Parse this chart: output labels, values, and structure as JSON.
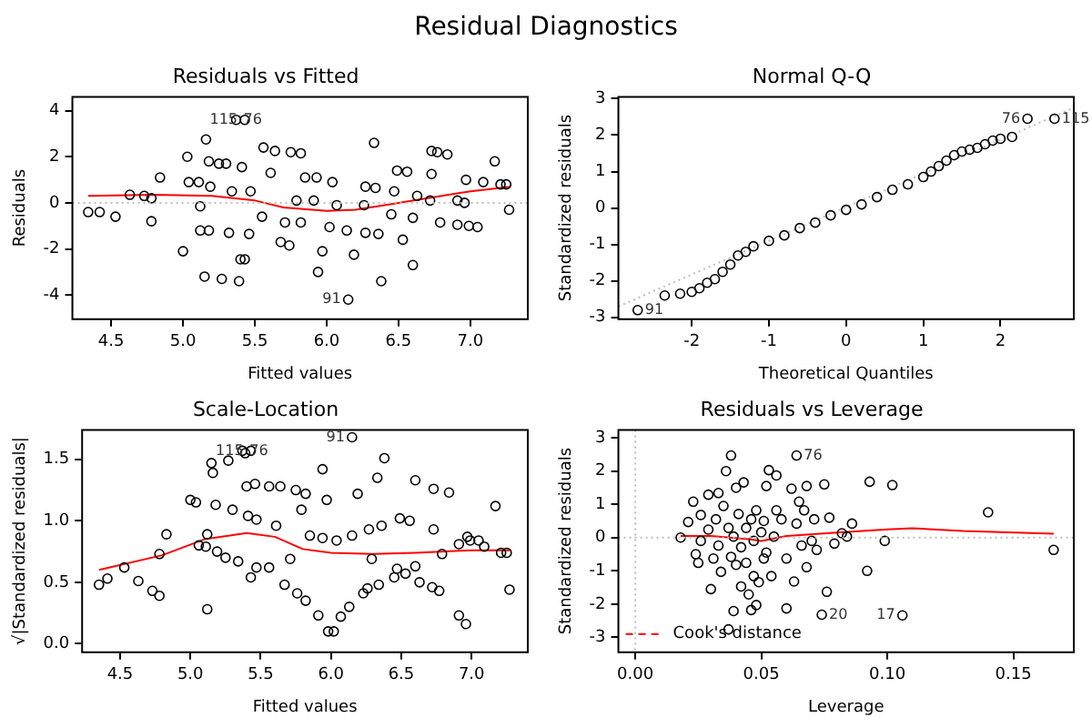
{
  "chart_data": [
    {
      "type": "other",
      "title": "Residual Diagnostics"
    },
    {
      "type": "scatter",
      "title": "Residuals vs Fitted",
      "xlabel": "Fitted values",
      "ylabel": "Residuals",
      "marker": "circle",
      "xlim": [
        4.23,
        7.4
      ],
      "ylim": [
        -5.05,
        4.6
      ],
      "xticks": [
        4.5,
        {
          "value": 5,
          "label": "5.0"
        },
        5.5,
        {
          "value": 6,
          "label": "6.0"
        },
        6.5,
        {
          "value": 7,
          "label": "7.0"
        }
      ],
      "yticks": [
        -4,
        -2,
        0,
        2,
        4
      ],
      "ref_lines": [
        {
          "axis": "y",
          "value": 0,
          "color": "#bebebe",
          "line_style": "dotted"
        }
      ],
      "annotations": [
        {
          "text": "76",
          "x": 5.37,
          "y": 3.6
        },
        {
          "text": "115",
          "x": 5.43,
          "y": 3.6
        },
        {
          "text": "91",
          "x": 6.15,
          "y": -4.2
        }
      ],
      "series": [
        {
          "type": "scatter",
          "color": "#000000",
          "x": [
            4.34,
            4.42,
            4.53,
            4.63,
            4.73,
            4.78,
            4.78,
            4.84,
            5.0,
            5.03,
            5.04,
            5.11,
            5.12,
            5.12,
            5.15,
            5.16,
            5.18,
            5.18,
            5.19,
            5.25,
            5.27,
            5.3,
            5.32,
            5.34,
            5.37,
            5.39,
            5.4,
            5.41,
            5.43,
            5.43,
            5.46,
            5.47,
            5.56,
            5.55,
            5.61,
            5.64,
            5.68,
            5.71,
            5.74,
            5.75,
            5.79,
            5.82,
            5.82,
            5.85,
            5.91,
            5.94,
            5.97,
            5.93,
            6.02,
            6.04,
            6.07,
            6.14,
            6.15,
            6.19,
            6.26,
            6.27,
            6.27,
            6.33,
            6.34,
            6.36,
            6.38,
            6.45,
            6.47,
            6.49,
            6.53,
            6.56,
            6.6,
            6.6,
            6.63,
            6.72,
            6.73,
            6.73,
            6.77,
            6.79,
            6.84,
            6.91,
            6.91,
            6.96,
            6.97,
            6.99,
            7.05,
            7.09,
            7.17,
            7.21,
            7.25,
            7.27
          ],
          "values": [
            -0.4,
            -0.4,
            -0.6,
            0.35,
            0.3,
            0.2,
            -0.8,
            1.1,
            -2.1,
            2.0,
            0.9,
            0.9,
            -0.15,
            -1.2,
            -3.2,
            2.75,
            1.8,
            -1.2,
            0.7,
            1.7,
            -3.3,
            1.7,
            -1.3,
            0.5,
            3.6,
            -3.4,
            -2.45,
            1.55,
            3.6,
            -2.45,
            -1.35,
            0.5,
            2.4,
            -0.6,
            1.3,
            2.25,
            -1.7,
            -0.85,
            -1.85,
            2.2,
            0.1,
            2.15,
            -0.85,
            1.1,
            0.1,
            -3.0,
            -2.1,
            1.1,
            -1.05,
            0.9,
            -0.1,
            -1.2,
            -4.2,
            -2.25,
            -0.1,
            0.7,
            -1.3,
            2.6,
            0.65,
            -1.35,
            -3.4,
            -0.5,
            0.5,
            1.4,
            -1.6,
            1.35,
            -2.7,
            -0.65,
            0.3,
            0.1,
            1.25,
            2.25,
            2.2,
            -0.85,
            2.1,
            0.1,
            -0.95,
            0.0,
            1.0,
            -1.0,
            -1.05,
            0.9,
            1.8,
            0.8,
            0.8,
            -0.3
          ]
        },
        {
          "type": "line",
          "color": "#ff0000",
          "marker": "none",
          "x": [
            4.34,
            4.8,
            5.2,
            5.5,
            5.7,
            6.0,
            6.2,
            6.5,
            6.8,
            7.0,
            7.28
          ],
          "values": [
            0.3,
            0.35,
            0.3,
            0.1,
            -0.2,
            -0.35,
            -0.3,
            0.0,
            0.3,
            0.5,
            0.7
          ]
        }
      ]
    },
    {
      "type": "scatter",
      "title": "Normal Q-Q",
      "xlabel": "Theoretical Quantiles",
      "ylabel": "Standardized residuals",
      "marker": "circle",
      "xlim": [
        -2.95,
        2.95
      ],
      "ylim": [
        -3.05,
        3.05
      ],
      "xticks": [
        -2,
        -1,
        0,
        1,
        2
      ],
      "yticks": [
        -3,
        -2,
        -1,
        0,
        1,
        2,
        3
      ],
      "annotations": [
        {
          "text": "91",
          "x": -2.7,
          "y": -2.8
        },
        {
          "text": "76",
          "x": 2.35,
          "y": 2.45
        },
        {
          "text": "115",
          "x": 2.7,
          "y": 2.45
        }
      ],
      "series": [
        {
          "type": "scatter",
          "color": "#000000",
          "x": [
            -2.7,
            -2.35,
            -2.15,
            -2.0,
            -1.9,
            -1.8,
            -1.7,
            -1.6,
            -1.5,
            -1.4,
            -1.3,
            -1.2,
            -1.0,
            -0.8,
            -0.6,
            -0.4,
            -0.2,
            0,
            0.2,
            0.4,
            0.6,
            0.8,
            1.0,
            1.1,
            1.2,
            1.3,
            1.4,
            1.5,
            1.6,
            1.7,
            1.8,
            1.9,
            2.0,
            2.15,
            2.35,
            2.7
          ],
          "values": [
            -2.8,
            -2.4,
            -2.35,
            -2.3,
            -2.2,
            -2.05,
            -1.95,
            -1.75,
            -1.55,
            -1.3,
            -1.2,
            -1.05,
            -0.9,
            -0.75,
            -0.55,
            -0.4,
            -0.2,
            -0.05,
            0.1,
            0.3,
            0.5,
            0.65,
            0.85,
            1.0,
            1.15,
            1.3,
            1.45,
            1.55,
            1.6,
            1.65,
            1.75,
            1.85,
            1.9,
            1.95,
            2.45,
            2.45
          ]
        },
        {
          "type": "line",
          "color": "#bebebe",
          "line_style": "dotted",
          "marker": "none",
          "x": [
            -2.95,
            2.95
          ],
          "values": [
            -2.7,
            2.75
          ]
        }
      ]
    },
    {
      "type": "scatter",
      "title": "Scale-Location",
      "xlabel": "Fitted values",
      "ylabel": "√|Standardized residuals|",
      "marker": "circle",
      "xlim": [
        4.23,
        7.4
      ],
      "ylim": [
        -0.07,
        1.74
      ],
      "xticks": [
        4.5,
        {
          "value": 5,
          "label": "5.0"
        },
        5.5,
        {
          "value": 6,
          "label": "6.0"
        },
        6.5,
        {
          "value": 7,
          "label": "7.0"
        }
      ],
      "yticks": [
        {
          "value": 0,
          "label": "0.0"
        },
        {
          "value": 0.5,
          "label": "0.5"
        },
        {
          "value": 1,
          "label": "1.0"
        },
        {
          "value": 1.5,
          "label": "1.5"
        }
      ],
      "annotations": [
        {
          "text": "76",
          "x": 5.37,
          "y": 1.57
        },
        {
          "text": "115",
          "x": 5.43,
          "y": 1.57
        },
        {
          "text": "91",
          "x": 6.15,
          "y": 1.68
        }
      ],
      "series": [
        {
          "type": "scatter",
          "color": "#000000",
          "x": [
            4.35,
            4.41,
            4.53,
            4.63,
            4.73,
            4.78,
            4.78,
            4.83,
            5.0,
            5.04,
            5.06,
            5.11,
            5.12,
            5.12,
            5.15,
            5.16,
            5.18,
            5.19,
            5.25,
            5.27,
            5.3,
            5.34,
            5.37,
            5.39,
            5.4,
            5.41,
            5.43,
            5.43,
            5.46,
            5.47,
            5.47,
            5.56,
            5.56,
            5.61,
            5.64,
            5.67,
            5.71,
            5.75,
            5.76,
            5.79,
            5.82,
            5.82,
            5.85,
            5.91,
            5.94,
            5.94,
            5.97,
            5.98,
            6.02,
            6.04,
            6.07,
            6.13,
            6.15,
            6.15,
            6.19,
            6.23,
            6.26,
            6.27,
            6.29,
            6.33,
            6.34,
            6.36,
            6.38,
            6.45,
            6.47,
            6.49,
            6.53,
            6.56,
            6.6,
            6.6,
            6.63,
            6.72,
            6.73,
            6.73,
            6.77,
            6.79,
            6.84,
            6.91,
            6.91,
            6.96,
            6.97,
            6.99,
            7.05,
            7.09,
            7.17,
            7.21,
            7.25,
            7.27
          ],
          "values": [
            0.48,
            0.53,
            0.62,
            0.51,
            0.43,
            0.39,
            0.73,
            0.89,
            1.17,
            1.15,
            0.8,
            0.79,
            0.28,
            0.89,
            1.47,
            1.39,
            1.13,
            0.75,
            0.7,
            1.49,
            1.09,
            0.67,
            1.57,
            1.55,
            1.28,
            1.04,
            1.57,
            0.54,
            1.3,
            1.01,
            0.62,
            1.28,
            0.62,
            0.96,
            1.28,
            0.48,
            0.69,
            1.25,
            0.41,
            1.09,
            1.22,
            0.35,
            0.88,
            0.23,
            1.42,
            0.86,
            1.17,
            0.1,
            0.1,
            0.84,
            0.22,
            0.3,
            1.68,
            0.88,
            1.22,
            0.41,
            0.45,
            0.93,
            0.69,
            1.35,
            0.48,
            0.96,
            1.51,
            0.54,
            0.61,
            1.02,
            0.57,
            1.0,
            1.33,
            0.63,
            0.5,
            0.46,
            0.93,
            1.26,
            0.43,
            0.73,
            1.23,
            0.23,
            0.81,
            0.16,
            0.87,
            0.84,
            0.84,
            0.79,
            1.12,
            0.74,
            0.74,
            0.44
          ]
        },
        {
          "type": "line",
          "color": "#ff0000",
          "marker": "none",
          "x": [
            4.35,
            4.8,
            5.1,
            5.4,
            5.6,
            5.8,
            6.0,
            6.3,
            6.6,
            7.0,
            7.27
          ],
          "values": [
            0.6,
            0.72,
            0.85,
            0.9,
            0.87,
            0.77,
            0.74,
            0.73,
            0.74,
            0.76,
            0.76
          ]
        }
      ]
    },
    {
      "type": "scatter",
      "title": "Residuals vs Leverage",
      "xlabel": "Leverage",
      "ylabel": "Standardized residuals",
      "marker": "circle",
      "legend": "bottom left",
      "xlim": [
        -0.0067,
        0.174
      ],
      "ylim": [
        -3.45,
        3.24
      ],
      "xticks": [
        {
          "value": 0,
          "label": "0.00"
        },
        {
          "value": 0.05,
          "label": "0.05"
        },
        {
          "value": 0.1,
          "label": "0.10"
        },
        {
          "value": 0.15,
          "label": "0.15"
        }
      ],
      "yticks": [
        -3,
        -2,
        -1,
        0,
        1,
        2,
        3
      ],
      "ref_lines": [
        {
          "axis": "y",
          "value": 0,
          "color": "#bebebe",
          "line_style": "dotted"
        },
        {
          "axis": "x",
          "value": 0,
          "color": "#bebebe",
          "line_style": "dotted"
        }
      ],
      "annotations": [
        {
          "text": "76",
          "x": 0.064,
          "y": 2.47
        },
        {
          "text": "20",
          "x": 0.074,
          "y": -2.32
        },
        {
          "text": "17",
          "x": 0.106,
          "y": -2.34
        }
      ],
      "series": [
        {
          "type": "scatter",
          "color": "#000000",
          "x": [
            0.018,
            0.021,
            0.023,
            0.024,
            0.025,
            0.026,
            0.026,
            0.029,
            0.029,
            0.03,
            0.031,
            0.032,
            0.033,
            0.033,
            0.034,
            0.035,
            0.036,
            0.037,
            0.037,
            0.038,
            0.038,
            0.039,
            0.039,
            0.04,
            0.04,
            0.041,
            0.042,
            0.042,
            0.043,
            0.044,
            0.044,
            0.045,
            0.046,
            0.046,
            0.047,
            0.047,
            0.048,
            0.048,
            0.049,
            0.05,
            0.051,
            0.051,
            0.052,
            0.052,
            0.053,
            0.054,
            0.055,
            0.056,
            0.056,
            0.058,
            0.06,
            0.06,
            0.062,
            0.063,
            0.064,
            0.064,
            0.065,
            0.066,
            0.067,
            0.068,
            0.068,
            0.07,
            0.071,
            0.072,
            0.074,
            0.075,
            0.076,
            0.077,
            0.079,
            0.082,
            0.084,
            0.086,
            0.092,
            0.093,
            0.099,
            0.102,
            0.106,
            0.14,
            0.166
          ],
          "values": [
            0,
            0.47,
            1.08,
            -0.5,
            -0.76,
            -0.1,
            0.68,
            1.29,
            0.24,
            -1.55,
            -0.63,
            0.55,
            1.34,
            -0.24,
            -1.03,
            0.95,
            2.0,
            0.29,
            -2.76,
            -0.58,
            2.47,
            -2.21,
            0.03,
            -0.82,
            1.5,
            0.71,
            -1.47,
            -0.29,
            1.66,
            0.29,
            -0.76,
            -1.71,
            0.55,
            -2.18,
            -0.1,
            -1.16,
            0.82,
            -2.03,
            -1.34,
            0.16,
            -0.63,
            0.5,
            -0.45,
            1.55,
            2.03,
            -1.16,
            0.03,
            1.87,
            0.82,
            0.55,
            -2.13,
            -0.63,
            1.47,
            -1.32,
            0.42,
            2.47,
            1.08,
            -0.24,
            0.82,
            1.55,
            -0.89,
            -0.1,
            0.55,
            -0.37,
            -2.32,
            1.6,
            -1.63,
            0.6,
            -0.18,
            0.13,
            0.03,
            0.42,
            -1.0,
            1.68,
            -0.1,
            1.58,
            -2.34,
            0.76,
            -0.37
          ]
        },
        {
          "type": "line",
          "color": "#ff0000",
          "marker": "none",
          "x": [
            0.018,
            0.03,
            0.045,
            0.05,
            0.06,
            0.08,
            0.1,
            0.11,
            0.13,
            0.166
          ],
          "values": [
            0.05,
            0.05,
            -0.05,
            -0.1,
            0.05,
            0.15,
            0.25,
            0.28,
            0.2,
            0.12
          ]
        },
        {
          "type": "line",
          "name": "Cook's distance",
          "color": "#ff0000",
          "line_style": "dashed",
          "marker": "none"
        }
      ]
    }
  ]
}
